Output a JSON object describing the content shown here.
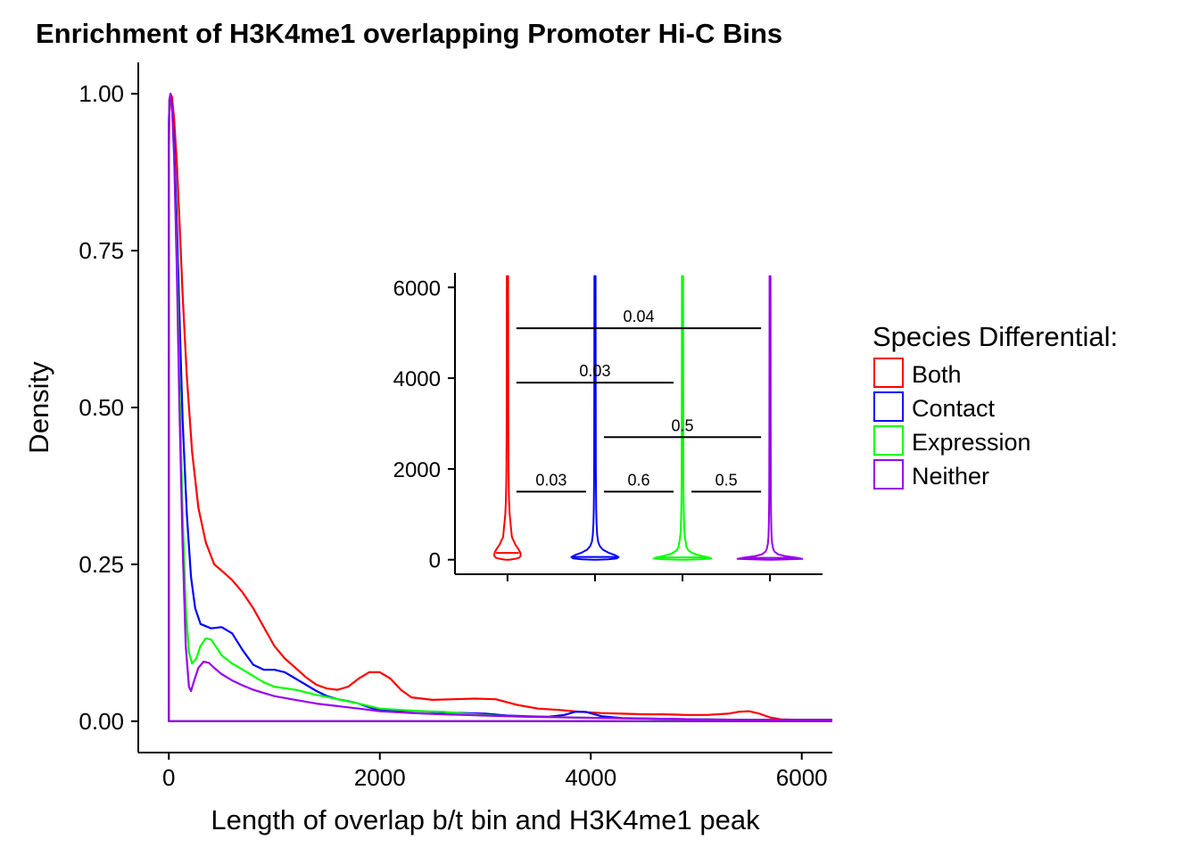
{
  "chart_data": [
    {
      "type": "line",
      "title": "Enrichment of H3K4me1 overlapping Promoter Hi-C Bins",
      "xlabel": "Length of overlap b/t bin and H3K4me1 peak",
      "ylabel": "Density",
      "xlim": [
        -290,
        6290
      ],
      "ylim": [
        -0.05,
        1.05
      ],
      "xticks": [
        0,
        2000,
        4000,
        6000
      ],
      "xtick_labels": [
        "0",
        "2000",
        "4000",
        "6000"
      ],
      "yticks": [
        0,
        0.25,
        0.5,
        0.75,
        1.0
      ],
      "ytick_labels": [
        "0.00",
        "0.25",
        "0.50",
        "0.75",
        "1.00"
      ],
      "grid": false,
      "legend": {
        "title": "Species Differential:",
        "position": "right"
      },
      "series": [
        {
          "name": "Both",
          "color": "#ff0000",
          "x": [
            0,
            5,
            15,
            30,
            50,
            75,
            100,
            130,
            170,
            220,
            280,
            350,
            430,
            500,
            600,
            700,
            800,
            900,
            1000,
            1100,
            1200,
            1300,
            1400,
            1500,
            1600,
            1700,
            1800,
            1900,
            2000,
            2100,
            2200,
            2300,
            2500,
            2700,
            2900,
            3100,
            3300,
            3500,
            3700,
            3900,
            4100,
            4300,
            4500,
            4700,
            4900,
            5100,
            5300,
            5400,
            5500,
            5600,
            5700,
            5800,
            6000,
            6200,
            6290
          ],
          "y": [
            0.9,
            0.97,
            1.0,
            0.995,
            0.96,
            0.89,
            0.8,
            0.68,
            0.55,
            0.43,
            0.34,
            0.285,
            0.25,
            0.24,
            0.225,
            0.205,
            0.18,
            0.15,
            0.12,
            0.1,
            0.085,
            0.07,
            0.058,
            0.052,
            0.05,
            0.055,
            0.068,
            0.078,
            0.078,
            0.068,
            0.05,
            0.038,
            0.034,
            0.035,
            0.036,
            0.035,
            0.026,
            0.02,
            0.018,
            0.015,
            0.013,
            0.012,
            0.011,
            0.011,
            0.01,
            0.01,
            0.012,
            0.015,
            0.016,
            0.012,
            0.006,
            0.003,
            0.002,
            0.002,
            0.002
          ]
        },
        {
          "name": "Contact",
          "color": "#0000ff",
          "x": [
            0,
            5,
            15,
            30,
            50,
            75,
            100,
            130,
            170,
            210,
            250,
            300,
            400,
            500,
            600,
            700,
            800,
            900,
            1000,
            1100,
            1200,
            1300,
            1400,
            1500,
            1600,
            1700,
            1800,
            1900,
            2000,
            2200,
            2400,
            2600,
            2800,
            3000,
            3200,
            3400,
            3600,
            3750,
            3850,
            3950,
            4100,
            4300,
            4600,
            5000,
            5500,
            6000,
            6290
          ],
          "y": [
            0.95,
            0.99,
            1.0,
            0.98,
            0.92,
            0.8,
            0.65,
            0.48,
            0.33,
            0.23,
            0.18,
            0.155,
            0.148,
            0.15,
            0.14,
            0.113,
            0.09,
            0.082,
            0.082,
            0.078,
            0.068,
            0.058,
            0.048,
            0.04,
            0.035,
            0.032,
            0.028,
            0.022,
            0.018,
            0.017,
            0.016,
            0.014,
            0.013,
            0.012,
            0.009,
            0.008,
            0.007,
            0.01,
            0.015,
            0.015,
            0.008,
            0.005,
            0.004,
            0.003,
            0.002,
            0.002,
            0.002
          ]
        },
        {
          "name": "Expression",
          "color": "#00ff00",
          "x": [
            0,
            5,
            15,
            30,
            50,
            75,
            100,
            130,
            160,
            190,
            220,
            260,
            300,
            350,
            400,
            450,
            500,
            600,
            700,
            800,
            900,
            1000,
            1200,
            1400,
            1600,
            1800,
            2000,
            2200,
            2400,
            2600,
            2800,
            3000,
            3200,
            3500,
            3800,
            4100,
            4500,
            5000,
            5500,
            6000,
            6290
          ],
          "y": [
            0.95,
            0.99,
            1.0,
            0.98,
            0.9,
            0.75,
            0.55,
            0.33,
            0.18,
            0.11,
            0.092,
            0.1,
            0.12,
            0.132,
            0.13,
            0.118,
            0.105,
            0.092,
            0.082,
            0.072,
            0.062,
            0.055,
            0.05,
            0.042,
            0.035,
            0.028,
            0.02,
            0.018,
            0.016,
            0.015,
            0.012,
            0.01,
            0.008,
            0.007,
            0.006,
            0.005,
            0.004,
            0.003,
            0.002,
            0.002,
            0.002
          ]
        },
        {
          "name": "Neither",
          "color": "#9900ee",
          "x": [
            0,
            5,
            15,
            30,
            50,
            75,
            100,
            130,
            160,
            190,
            210,
            240,
            280,
            330,
            380,
            430,
            500,
            600,
            700,
            800,
            900,
            1000,
            1200,
            1400,
            1600,
            1800,
            2000,
            2300,
            2600,
            3000,
            3400,
            3800,
            4200,
            4600,
            5000,
            5500,
            6000,
            6290
          ],
          "y": [
            0.95,
            0.99,
            1.0,
            0.98,
            0.9,
            0.72,
            0.5,
            0.28,
            0.12,
            0.055,
            0.048,
            0.065,
            0.085,
            0.095,
            0.093,
            0.085,
            0.075,
            0.065,
            0.057,
            0.05,
            0.045,
            0.04,
            0.034,
            0.028,
            0.024,
            0.02,
            0.016,
            0.013,
            0.011,
            0.009,
            0.007,
            0.006,
            0.005,
            0.004,
            0.003,
            0.002,
            0.002,
            0.002
          ]
        }
      ]
    },
    {
      "type": "violin",
      "ylim": [
        -320,
        6320
      ],
      "yticks": [
        0,
        2000,
        4000,
        6000
      ],
      "ytick_labels": [
        "0",
        "2000",
        "4000",
        "6000"
      ],
      "categories": [
        "Both",
        "Contact",
        "Expression",
        "Neither"
      ],
      "grid": false,
      "series": [
        {
          "name": "Both",
          "color": "#ff0000",
          "max": 6250,
          "profile": {
            "y": [
              0,
              15,
              40,
              80,
              130,
              180,
              250,
              330,
              420,
              500,
              700,
              1000,
              1300,
              1600,
              2000,
              3000,
              4500,
              6250
            ],
            "halfwidth": [
              0.02,
              0.08,
              0.13,
              0.15,
              0.15,
              0.14,
              0.12,
              0.09,
              0.07,
              0.05,
              0.04,
              0.025,
              0.018,
              0.015,
              0.012,
              0.01,
              0.009,
              0.008
            ]
          },
          "median": 150,
          "median_halfwidth": 0.13
        },
        {
          "name": "Contact",
          "color": "#0000ff",
          "max": 6250,
          "profile": {
            "y": [
              0,
              10,
              30,
              60,
              100,
              150,
              220,
              300,
              400,
              550,
              800,
              1100,
              1500,
              2000,
              3000,
              4500,
              6250
            ],
            "halfwidth": [
              0.02,
              0.15,
              0.25,
              0.27,
              0.23,
              0.16,
              0.09,
              0.055,
              0.035,
              0.025,
              0.018,
              0.014,
              0.012,
              0.01,
              0.009,
              0.008,
              0.007
            ]
          },
          "median": 60,
          "median_halfwidth": 0.25
        },
        {
          "name": "Expression",
          "color": "#00ff00",
          "max": 6250,
          "profile": {
            "y": [
              0,
              10,
              25,
              50,
              90,
              140,
              200,
              280,
              350,
              450,
              600,
              900,
              1200,
              1600,
              2000,
              3000,
              4500,
              6250
            ],
            "halfwidth": [
              0.03,
              0.2,
              0.33,
              0.3,
              0.2,
              0.12,
              0.07,
              0.045,
              0.04,
              0.03,
              0.022,
              0.016,
              0.013,
              0.011,
              0.01,
              0.009,
              0.008,
              0.007
            ]
          },
          "median": 50,
          "median_halfwidth": 0.3
        },
        {
          "name": "Neither",
          "color": "#9900ee",
          "max": 6250,
          "profile": {
            "y": [
              0,
              8,
              20,
              45,
              80,
              120,
              180,
              250,
              350,
              500,
              700,
              1000,
              1400,
              2000,
              3000,
              4500,
              6250
            ],
            "halfwidth": [
              0.03,
              0.22,
              0.37,
              0.3,
              0.17,
              0.09,
              0.05,
              0.035,
              0.025,
              0.018,
              0.015,
              0.012,
              0.01,
              0.009,
              0.008,
              0.007,
              0.006
            ]
          },
          "median": 40,
          "median_halfwidth": 0.3
        }
      ],
      "comparisons": [
        {
          "from": 1,
          "to": 4,
          "y": 5100,
          "label": "0.04"
        },
        {
          "from": 1,
          "to": 3,
          "y": 3900,
          "label": "0.03"
        },
        {
          "from": 2,
          "to": 4,
          "y": 2700,
          "label": "0.5"
        },
        {
          "from": 1,
          "to": 2,
          "y": 1500,
          "label": "0.03"
        },
        {
          "from": 2,
          "to": 3,
          "y": 1500,
          "label": "0.6"
        },
        {
          "from": 3,
          "to": 4,
          "y": 1500,
          "label": "0.5"
        }
      ]
    }
  ]
}
